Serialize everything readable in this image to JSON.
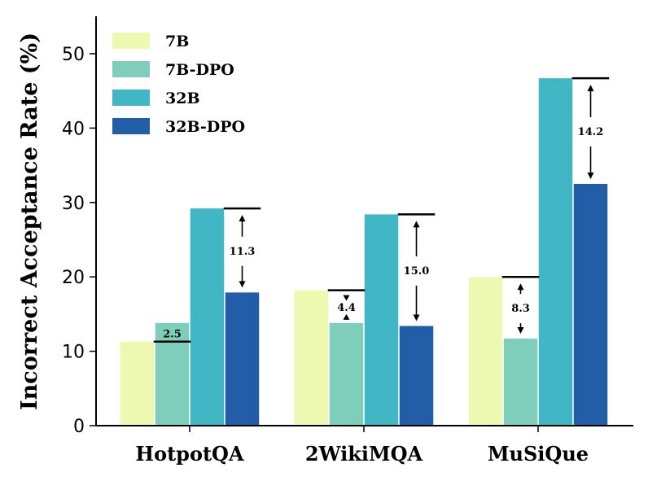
{
  "chart_data": {
    "type": "bar",
    "ylabel": "Incorrect Acceptance Rate (%)",
    "xlabel": "",
    "ylim": [
      0,
      55
    ],
    "yticks": [
      0,
      10,
      20,
      30,
      40,
      50
    ],
    "categories": [
      "HotpotQA",
      "2WikiMQA",
      "MuSiQue"
    ],
    "series": [
      {
        "name": "7B",
        "color": "#edf8b1",
        "values": [
          11.3,
          18.2,
          20.0
        ]
      },
      {
        "name": "7B-DPO",
        "color": "#7fcdbb",
        "values": [
          13.8,
          13.8,
          11.7
        ]
      },
      {
        "name": "32B",
        "color": "#41b6c4",
        "values": [
          29.2,
          28.4,
          46.7
        ]
      },
      {
        "name": "32B-DPO",
        "color": "#225ea8",
        "values": [
          17.9,
          13.4,
          32.5
        ]
      }
    ],
    "legend_position": "top-left",
    "annotations": [
      {
        "category": "HotpotQA",
        "pair": [
          "7B",
          "7B-DPO"
        ],
        "label": "2.5",
        "direction": "increase"
      },
      {
        "category": "HotpotQA",
        "pair": [
          "32B",
          "32B-DPO"
        ],
        "label": "11.3",
        "direction": "decrease"
      },
      {
        "category": "2WikiMQA",
        "pair": [
          "7B",
          "7B-DPO"
        ],
        "label": "4.4",
        "direction": "decrease"
      },
      {
        "category": "2WikiMQA",
        "pair": [
          "32B",
          "32B-DPO"
        ],
        "label": "15.0",
        "direction": "decrease"
      },
      {
        "category": "MuSiQue",
        "pair": [
          "7B",
          "7B-DPO"
        ],
        "label": "8.3",
        "direction": "decrease"
      },
      {
        "category": "MuSiQue",
        "pair": [
          "32B",
          "32B-DPO"
        ],
        "label": "14.2",
        "direction": "decrease"
      }
    ]
  }
}
